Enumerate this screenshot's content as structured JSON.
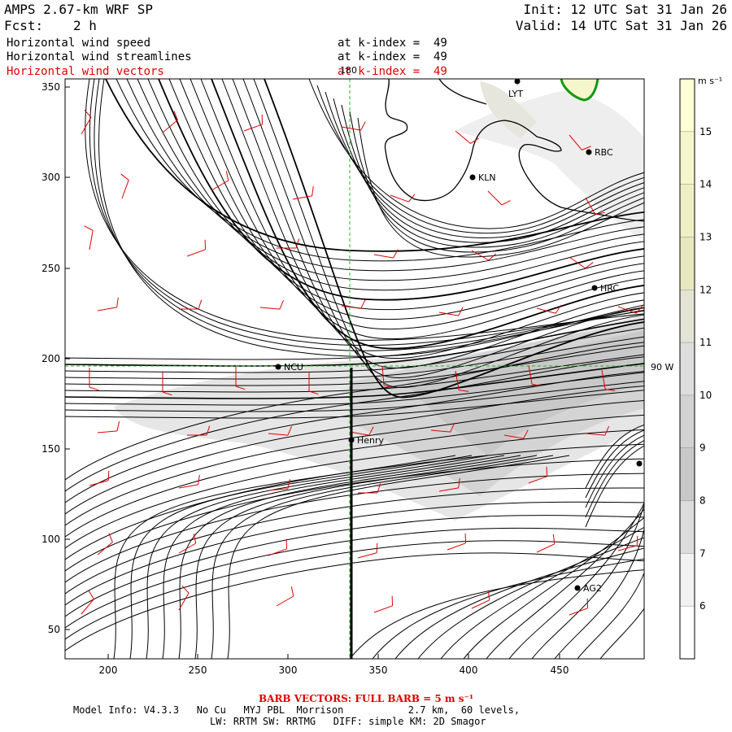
{
  "header": {
    "model": "AMPS 2.67-km WRF SP",
    "init": "Init: 12 UTC Sat 31 Jan 26",
    "forecast_label": "Fcst:",
    "forecast_value": "2 h",
    "valid": "Valid: 14 UTC Sat 31 Jan 26"
  },
  "fields": [
    {
      "name": "Horizontal wind speed",
      "level": "at k-index =  49",
      "color": "#000000"
    },
    {
      "name": "Horizontal wind streamlines",
      "level": "at k-index =  49",
      "color": "#000000"
    },
    {
      "name": "Horizontal wind vectors",
      "level": "at k-index =  49",
      "color": "#e00000"
    }
  ],
  "map": {
    "x_ticks": [
      "200",
      "250",
      "300",
      "350",
      "400",
      "450"
    ],
    "y_ticks": [
      "350",
      "300",
      "250",
      "200",
      "150",
      "100",
      "50"
    ],
    "meridian_label": "180",
    "parallel_label": "90 W",
    "stations": [
      {
        "name": "LYT",
        "label": "LYT",
        "kind": "dot"
      },
      {
        "name": "RBC",
        "label": "RBC",
        "kind": "dot"
      },
      {
        "name": "KLN",
        "label": "KLN",
        "kind": "dot"
      },
      {
        "name": "HRC",
        "label": "HRC",
        "kind": "dot"
      },
      {
        "name": "NCU",
        "label": "NCU",
        "kind": "dot"
      },
      {
        "name": "Henry",
        "label": "Henry",
        "kind": "dot"
      },
      {
        "name": "AG2",
        "label": "AG2",
        "kind": "dot"
      },
      {
        "name": "east-edge",
        "label": "",
        "kind": "dot"
      }
    ],
    "colors": {
      "streamline": "#000000",
      "barb": "#e00000",
      "coast": "#000000",
      "gridline": "#33aa33",
      "contour_15": "#119911"
    }
  },
  "colorbar": {
    "unit": "m s⁻¹",
    "levels": [
      "15",
      "14",
      "13",
      "12",
      "11",
      "10",
      "9",
      "8",
      "7",
      "6"
    ],
    "colors": [
      "#ffffd8",
      "#f6f6cc",
      "#efefc6",
      "#e8e8c0",
      "#e4e4d4",
      "#dedede",
      "#d2d2d2",
      "#c8c8c8",
      "#dcdcdc",
      "#f2f2f2",
      "#ffffff"
    ]
  },
  "footer": {
    "barb_note": "BARB VECTORS: FULL BARB = 5 m s⁻¹",
    "model_info": "Model Info: V4.3.3   No Cu   MYJ PBL  Morrison           2.7 km,  60 levels,",
    "physics": "LW: RRTM SW: RRTMG   DIFF: simple KM: 2D Smagor"
  }
}
